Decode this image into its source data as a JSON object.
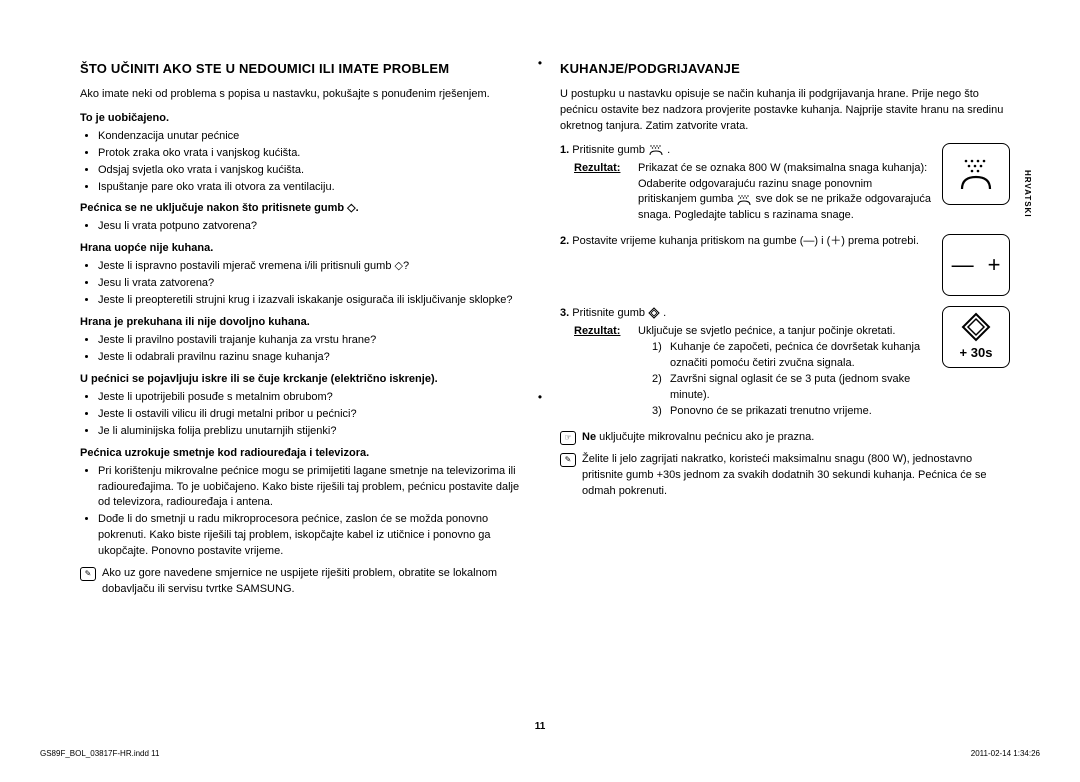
{
  "left": {
    "heading": "ŠTO UČINITI AKO STE U NEDOUMICI ILI IMATE PROBLEM",
    "intro": "Ako imate neki od problema s popisa u nastavku, pokušajte s ponuđenim rješenjem.",
    "sections": [
      {
        "title": "To je uobičajeno.",
        "items": [
          "Kondenzacija unutar pećnice",
          "Protok zraka oko vrata i vanjskog kućišta.",
          "Odsjaj svjetla oko vrata i vanjskog kućišta.",
          "Ispuštanje pare oko vrata ili otvora za ventilaciju."
        ]
      },
      {
        "title": "Pećnica se ne uključuje nakon što pritisnete gumb ◇.",
        "items": [
          "Jesu li vrata potpuno zatvorena?"
        ]
      },
      {
        "title": "Hrana uopće nije kuhana.",
        "items": [
          "Jeste li ispravno postavili mjerač vremena i/ili pritisnuli gumb ◇?",
          "Jesu li vrata zatvorena?",
          "Jeste li preopteretili strujni krug i izazvali iskakanje osigurača ili isključivanje sklopke?"
        ]
      },
      {
        "title": "Hrana je prekuhana ili nije dovoljno kuhana.",
        "items": [
          "Jeste li pravilno postavili trajanje kuhanja za vrstu hrane?",
          "Jeste li odabrali pravilnu razinu snage kuhanja?"
        ]
      },
      {
        "title": "U pećnici se pojavljuju iskre ili se čuje krckanje (električno iskrenje).",
        "items": [
          "Jeste li upotrijebili posuđe s metalnim obrubom?",
          "Jeste li ostavili vilicu ili drugi metalni pribor u pećnici?",
          "Je li aluminijska folija preblizu unutarnjih stijenki?"
        ]
      },
      {
        "title": "Pećnica uzrokuje smetnje kod radiouređaja i televizora.",
        "items": [
          "Pri korištenju mikrovalne pećnice mogu se primijetiti lagane smetnje na televizorima ili radiouređajima. To je uobičajeno. Kako biste riješili taj problem, pećnicu postavite dalje od televizora, radiouređaja i antena.",
          "Dođe li do smetnji u radu mikroprocesora pećnice, zaslon će se možda ponovno pokrenuti. Kako biste riješili taj problem, iskopčajte kabel iz utičnice i ponovno ga ukopčajte. Ponovno postavite vrijeme."
        ]
      }
    ],
    "note": "Ako uz gore navedene smjernice ne uspijete riješiti problem, obratite se lokalnom dobavljaču ili servisu tvrtke SAMSUNG."
  },
  "right": {
    "heading": "KUHANJE/PODGRIJAVANJE",
    "intro": "U postupku u nastavku opisuje se način kuhanja ili podgrijavanja hrane. Prije nego što pećnicu ostavite bez nadzora provjerite postavke kuhanja. Najprije stavite hranu na sredinu okretnog tanjura. Zatim zatvorite vrata.",
    "step1": {
      "num": "1.",
      "text_a": "Pritisnite gumb ",
      "text_b": ".",
      "rez_label": "Rezultat:",
      "rez_text": "Prikazat će se oznaka 800 W (maksimalna snaga kuhanja): Odaberite odgovarajuću razinu snage ponovnim pritiskanjem gumba  sve dok se ne prikaže odgovarajuća snaga. Pogledajte tablicu s razinama snage."
    },
    "step2": {
      "num": "2.",
      "text": "Postavite vrijeme kuhanja pritiskom na gumbe (—) i (＋) prema potrebi."
    },
    "step3": {
      "num": "3.",
      "text_a": "Pritisnite gumb ",
      "text_b": ".",
      "rez_label": "Rezultat:",
      "rez_text": "Uključuje se svjetlo pećnice, a tanjur počinje okretati.",
      "sub": [
        {
          "n": "1)",
          "t": "Kuhanje će započeti, pećnica će dovršetak kuhanja označiti pomoću četiri zvučna signala."
        },
        {
          "n": "2)",
          "t": "Završni signal oglasit će se 3 puta (jednom svake minute)."
        },
        {
          "n": "3)",
          "t": "Ponovno će se prikazati trenutno vrijeme."
        }
      ]
    },
    "warn_bold": "Ne",
    "warn_text": " uključujte mikrovalnu pećnicu ako je prazna.",
    "tip": "Želite li jelo zagrijati nakratko, koristeći maksimalnu snagu (800 W), jednostavno pritisnite gumb +30s jednom za svakih dodatnih 30 sekundi kuhanja. Pećnica će se odmah pokrenuti."
  },
  "icons": {
    "box2_minus": "—",
    "box2_plus": "+",
    "box3_text": "+ 30s"
  },
  "side_tab": "HRVATSKI",
  "page_num": "11",
  "footer_left": "GS89F_BOL_03817F-HR.indd   11",
  "footer_right": "2011-02-14   1:34:26"
}
